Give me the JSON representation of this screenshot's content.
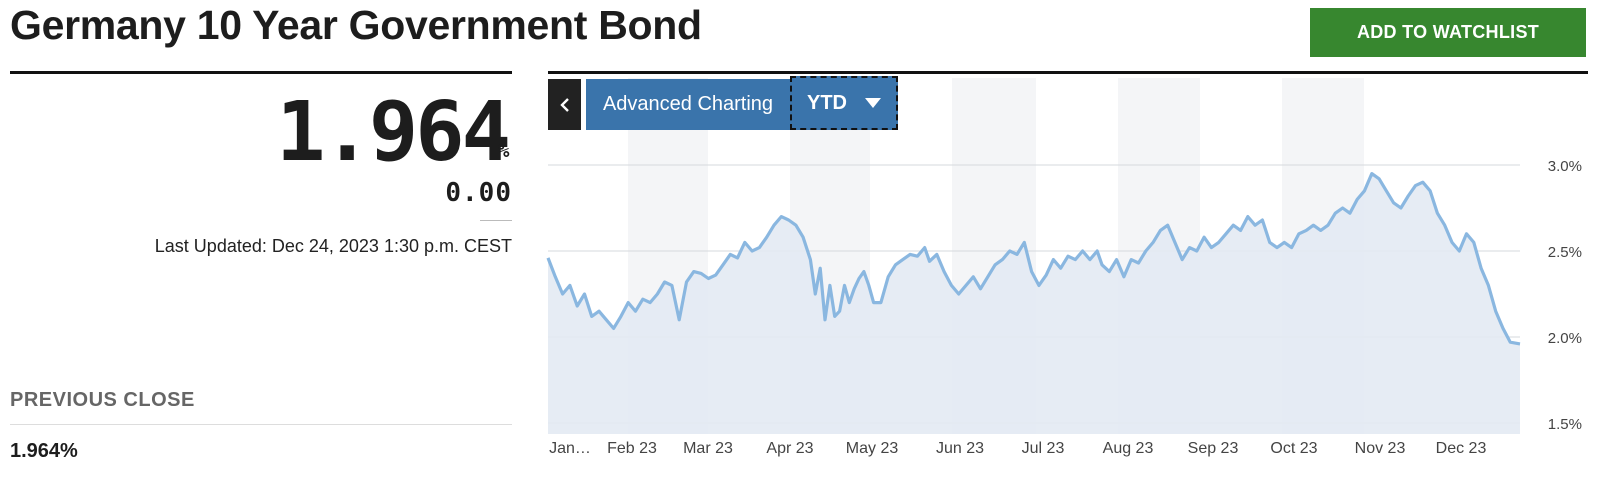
{
  "header": {
    "title": "Germany 10 Year Government Bond",
    "watchlist_label": "ADD TO WATCHLIST"
  },
  "quote": {
    "price": "1.964",
    "unit": "%",
    "change": "0.00",
    "last_updated": "Last Updated: Dec 24, 2023 1:30 p.m. CEST",
    "previous_close_label": "PREVIOUS CLOSE",
    "previous_close_value": "1.964%"
  },
  "chart_controls": {
    "advanced_label": "Advanced Charting",
    "range_label": "YTD"
  },
  "colors": {
    "accent_green": "#37872f",
    "control_blue": "#3a74ab",
    "line_blue": "#8ab7e0",
    "area_fill": "#e3eaf3"
  },
  "chart_data": {
    "type": "area",
    "x_ticks": [
      "Jan…",
      "Feb 23",
      "Mar 23",
      "Apr 23",
      "May 23",
      "Jun 23",
      "Jul 23",
      "Aug 23",
      "Sep 23",
      "Oct 23",
      "Nov 23",
      "Dec 23"
    ],
    "y_ticks": [
      "3.0%",
      "2.5%",
      "2.0%",
      "1.5%"
    ],
    "ylim": [
      1.5,
      3.0
    ],
    "grid": true,
    "series": [
      {
        "values": [
          [
            0,
            2.46
          ],
          [
            3,
            2.35
          ],
          [
            6,
            2.25
          ],
          [
            9,
            2.3
          ],
          [
            12,
            2.18
          ],
          [
            15,
            2.25
          ],
          [
            18,
            2.12
          ],
          [
            21,
            2.15
          ],
          [
            24,
            2.1
          ],
          [
            27,
            2.05
          ],
          [
            30,
            2.12
          ],
          [
            33,
            2.2
          ],
          [
            36,
            2.15
          ],
          [
            39,
            2.22
          ],
          [
            42,
            2.2
          ],
          [
            45,
            2.25
          ],
          [
            48,
            2.32
          ],
          [
            51,
            2.3
          ],
          [
            54,
            2.1
          ],
          [
            57,
            2.32
          ],
          [
            60,
            2.38
          ],
          [
            63,
            2.37
          ],
          [
            66,
            2.34
          ],
          [
            69,
            2.36
          ],
          [
            72,
            2.42
          ],
          [
            75,
            2.48
          ],
          [
            78,
            2.46
          ],
          [
            81,
            2.55
          ],
          [
            84,
            2.5
          ],
          [
            87,
            2.52
          ],
          [
            90,
            2.58
          ],
          [
            93,
            2.65
          ],
          [
            96,
            2.7
          ],
          [
            99,
            2.68
          ],
          [
            102,
            2.65
          ],
          [
            105,
            2.58
          ],
          [
            108,
            2.45
          ],
          [
            110,
            2.25
          ],
          [
            112,
            2.4
          ],
          [
            114,
            2.1
          ],
          [
            116,
            2.3
          ],
          [
            118,
            2.12
          ],
          [
            120,
            2.15
          ],
          [
            122,
            2.3
          ],
          [
            124,
            2.2
          ],
          [
            126,
            2.28
          ],
          [
            128,
            2.34
          ],
          [
            130,
            2.38
          ],
          [
            132,
            2.3
          ],
          [
            134,
            2.2
          ],
          [
            137,
            2.2
          ],
          [
            140,
            2.35
          ],
          [
            143,
            2.42
          ],
          [
            146,
            2.45
          ],
          [
            149,
            2.48
          ],
          [
            152,
            2.47
          ],
          [
            155,
            2.52
          ],
          [
            157,
            2.44
          ],
          [
            160,
            2.48
          ],
          [
            163,
            2.38
          ],
          [
            166,
            2.3
          ],
          [
            169,
            2.25
          ],
          [
            172,
            2.3
          ],
          [
            175,
            2.35
          ],
          [
            178,
            2.28
          ],
          [
            181,
            2.35
          ],
          [
            184,
            2.42
          ],
          [
            187,
            2.45
          ],
          [
            190,
            2.5
          ],
          [
            193,
            2.48
          ],
          [
            196,
            2.55
          ],
          [
            199,
            2.38
          ],
          [
            202,
            2.3
          ],
          [
            205,
            2.36
          ],
          [
            208,
            2.45
          ],
          [
            211,
            2.4
          ],
          [
            214,
            2.47
          ],
          [
            217,
            2.45
          ],
          [
            220,
            2.5
          ],
          [
            223,
            2.45
          ],
          [
            226,
            2.5
          ],
          [
            228,
            2.42
          ],
          [
            231,
            2.38
          ],
          [
            234,
            2.45
          ],
          [
            237,
            2.35
          ],
          [
            240,
            2.45
          ],
          [
            243,
            2.43
          ],
          [
            246,
            2.5
          ],
          [
            249,
            2.55
          ],
          [
            252,
            2.62
          ],
          [
            255,
            2.65
          ],
          [
            258,
            2.55
          ],
          [
            261,
            2.45
          ],
          [
            264,
            2.52
          ],
          [
            267,
            2.5
          ],
          [
            270,
            2.58
          ],
          [
            273,
            2.52
          ],
          [
            276,
            2.55
          ],
          [
            279,
            2.6
          ],
          [
            282,
            2.65
          ],
          [
            285,
            2.62
          ],
          [
            288,
            2.7
          ],
          [
            291,
            2.65
          ],
          [
            294,
            2.68
          ],
          [
            297,
            2.55
          ],
          [
            300,
            2.52
          ],
          [
            303,
            2.55
          ],
          [
            306,
            2.52
          ],
          [
            309,
            2.6
          ],
          [
            312,
            2.62
          ],
          [
            315,
            2.65
          ],
          [
            318,
            2.62
          ],
          [
            321,
            2.65
          ],
          [
            324,
            2.72
          ],
          [
            327,
            2.75
          ],
          [
            330,
            2.72
          ],
          [
            333,
            2.8
          ],
          [
            336,
            2.85
          ],
          [
            339,
            2.95
          ],
          [
            342,
            2.92
          ],
          [
            345,
            2.85
          ],
          [
            348,
            2.78
          ],
          [
            351,
            2.75
          ],
          [
            354,
            2.82
          ],
          [
            357,
            2.88
          ],
          [
            360,
            2.9
          ],
          [
            363,
            2.85
          ],
          [
            366,
            2.72
          ],
          [
            369,
            2.65
          ],
          [
            372,
            2.55
          ],
          [
            375,
            2.5
          ],
          [
            378,
            2.6
          ],
          [
            381,
            2.55
          ],
          [
            384,
            2.4
          ],
          [
            387,
            2.3
          ],
          [
            390,
            2.15
          ],
          [
            393,
            2.05
          ],
          [
            396,
            1.97
          ],
          [
            400,
            1.96
          ]
        ]
      }
    ]
  }
}
